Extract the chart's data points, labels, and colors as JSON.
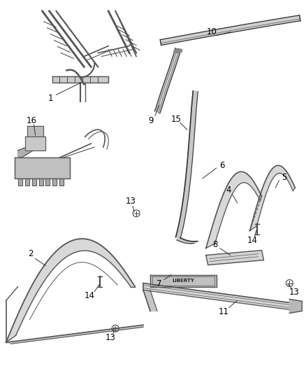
{
  "background_color": "#ffffff",
  "fig_width": 4.38,
  "fig_height": 5.33,
  "dpi": 100,
  "line_color": "#444444",
  "label_fontsize": 8.5
}
